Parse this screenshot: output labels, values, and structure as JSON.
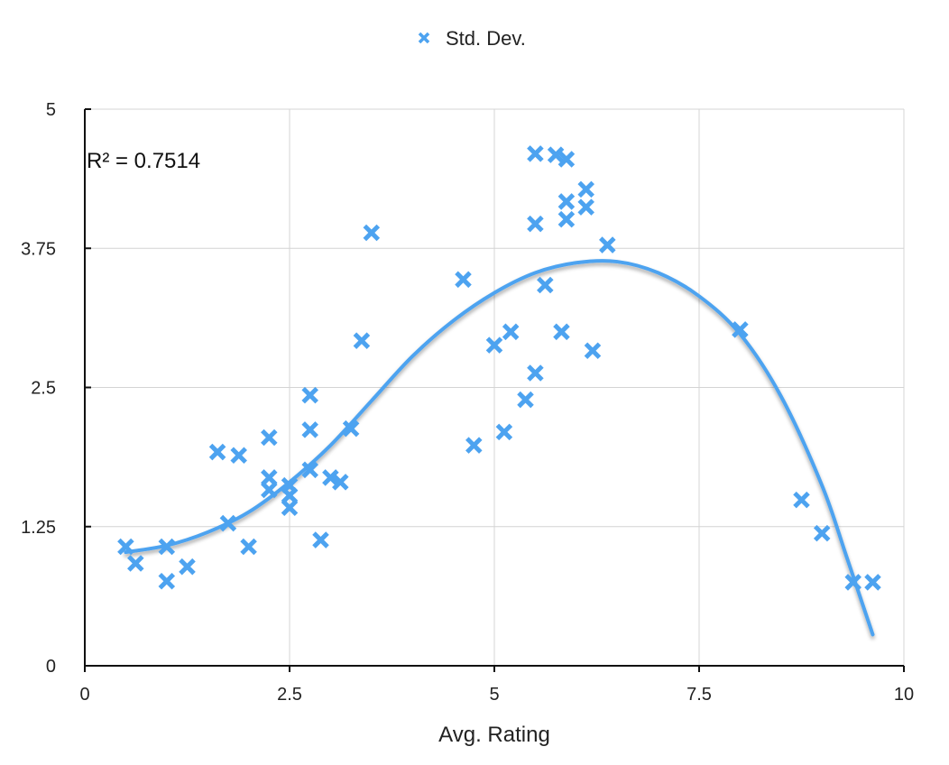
{
  "chart_data": {
    "type": "scatter",
    "title": "",
    "xlabel": "Avg. Rating",
    "ylabel": "",
    "xlim": [
      0,
      10
    ],
    "ylim": [
      0,
      5
    ],
    "x_ticks": [
      0,
      2.5,
      5,
      7.5,
      10
    ],
    "x_tick_labels": [
      "0",
      "2.5",
      "5",
      "7.5",
      "10"
    ],
    "y_ticks": [
      0,
      1.25,
      2.5,
      3.75,
      5
    ],
    "y_tick_labels": [
      "0",
      "1.25",
      "2.5",
      "3.75",
      "5"
    ],
    "grid": true,
    "legend_position": "top-center",
    "annotation": "R² = 0.7514",
    "series": [
      {
        "name": "Std. Dev.",
        "marker": "x",
        "color": "#4da3f0",
        "points": [
          [
            0.5,
            1.07
          ],
          [
            0.62,
            0.92
          ],
          [
            1.0,
            1.07
          ],
          [
            1.0,
            0.76
          ],
          [
            1.25,
            0.89
          ],
          [
            1.62,
            1.92
          ],
          [
            1.75,
            1.28
          ],
          [
            1.88,
            1.89
          ],
          [
            2.0,
            1.07
          ],
          [
            2.25,
            2.05
          ],
          [
            2.25,
            1.69
          ],
          [
            2.25,
            1.58
          ],
          [
            2.5,
            1.62
          ],
          [
            2.5,
            1.53
          ],
          [
            2.5,
            1.42
          ],
          [
            2.75,
            2.43
          ],
          [
            2.75,
            2.12
          ],
          [
            2.75,
            1.76
          ],
          [
            2.88,
            1.13
          ],
          [
            3.0,
            1.69
          ],
          [
            3.12,
            1.65
          ],
          [
            3.25,
            2.13
          ],
          [
            3.38,
            2.92
          ],
          [
            3.5,
            3.89
          ],
          [
            4.62,
            3.47
          ],
          [
            4.75,
            1.98
          ],
          [
            5.0,
            2.88
          ],
          [
            5.12,
            2.1
          ],
          [
            5.2,
            3.0
          ],
          [
            5.38,
            2.39
          ],
          [
            5.5,
            4.6
          ],
          [
            5.5,
            3.97
          ],
          [
            5.5,
            2.63
          ],
          [
            5.62,
            3.42
          ],
          [
            5.75,
            4.59
          ],
          [
            5.82,
            3.0
          ],
          [
            5.88,
            4.55
          ],
          [
            5.88,
            4.17
          ],
          [
            5.88,
            4.01
          ],
          [
            6.12,
            4.28
          ],
          [
            6.12,
            4.12
          ],
          [
            6.2,
            2.83
          ],
          [
            6.38,
            3.78
          ],
          [
            8.0,
            3.02
          ],
          [
            8.75,
            1.49
          ],
          [
            9.0,
            1.19
          ],
          [
            9.38,
            0.75
          ],
          [
            9.62,
            0.75
          ]
        ]
      }
    ],
    "trendline": {
      "type": "polynomial",
      "x_range": [
        0.5,
        9.62
      ],
      "curve_points": [
        [
          0.5,
          1.02
        ],
        [
          1.0,
          1.08
        ],
        [
          1.5,
          1.2
        ],
        [
          2.0,
          1.38
        ],
        [
          2.5,
          1.65
        ],
        [
          3.0,
          1.98
        ],
        [
          3.5,
          2.38
        ],
        [
          4.0,
          2.78
        ],
        [
          4.5,
          3.1
        ],
        [
          5.0,
          3.35
        ],
        [
          5.5,
          3.53
        ],
        [
          6.0,
          3.62
        ],
        [
          6.5,
          3.63
        ],
        [
          7.0,
          3.53
        ],
        [
          7.5,
          3.32
        ],
        [
          8.0,
          2.98
        ],
        [
          8.5,
          2.42
        ],
        [
          9.0,
          1.62
        ],
        [
          9.3,
          0.98
        ],
        [
          9.62,
          0.28
        ]
      ]
    }
  }
}
